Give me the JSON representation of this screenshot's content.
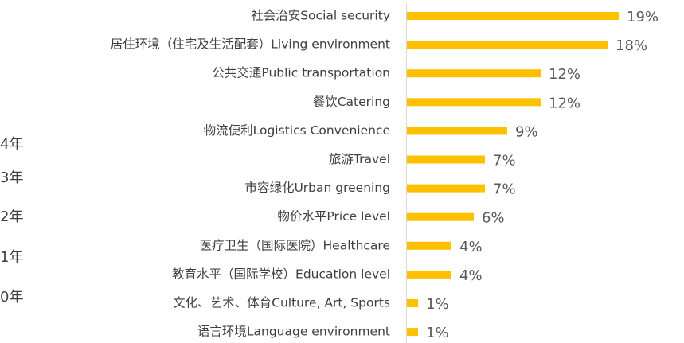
{
  "chart_data": {
    "type": "bar",
    "orientation": "horizontal",
    "color": "#FFC000",
    "categories": [
      "社会治安Social security",
      "居住环境（住宅及生活配套）Living environment",
      "公共交通Public transportation",
      "餐饮Catering",
      "物流便利Logistics Convenience",
      "旅游Travel",
      "市容绿化Urban greening",
      "物价水平Price level",
      "医疗卫生（国际医院）Healthcare",
      "教育水平（国际学校）Education level",
      "文化、艺术、体育Culture, Art, Sports",
      "语言环境Language environment"
    ],
    "values": [
      19,
      18,
      12,
      12,
      9,
      7,
      7,
      6,
      4,
      4,
      1,
      1
    ],
    "value_labels": [
      "19%",
      "18%",
      "12%",
      "12%",
      "9%",
      "7%",
      "7%",
      "6%",
      "4%",
      "4%",
      "1%",
      "1%"
    ]
  },
  "side_labels": [
    "4年",
    "3年",
    "2年",
    "1年",
    "0年"
  ]
}
